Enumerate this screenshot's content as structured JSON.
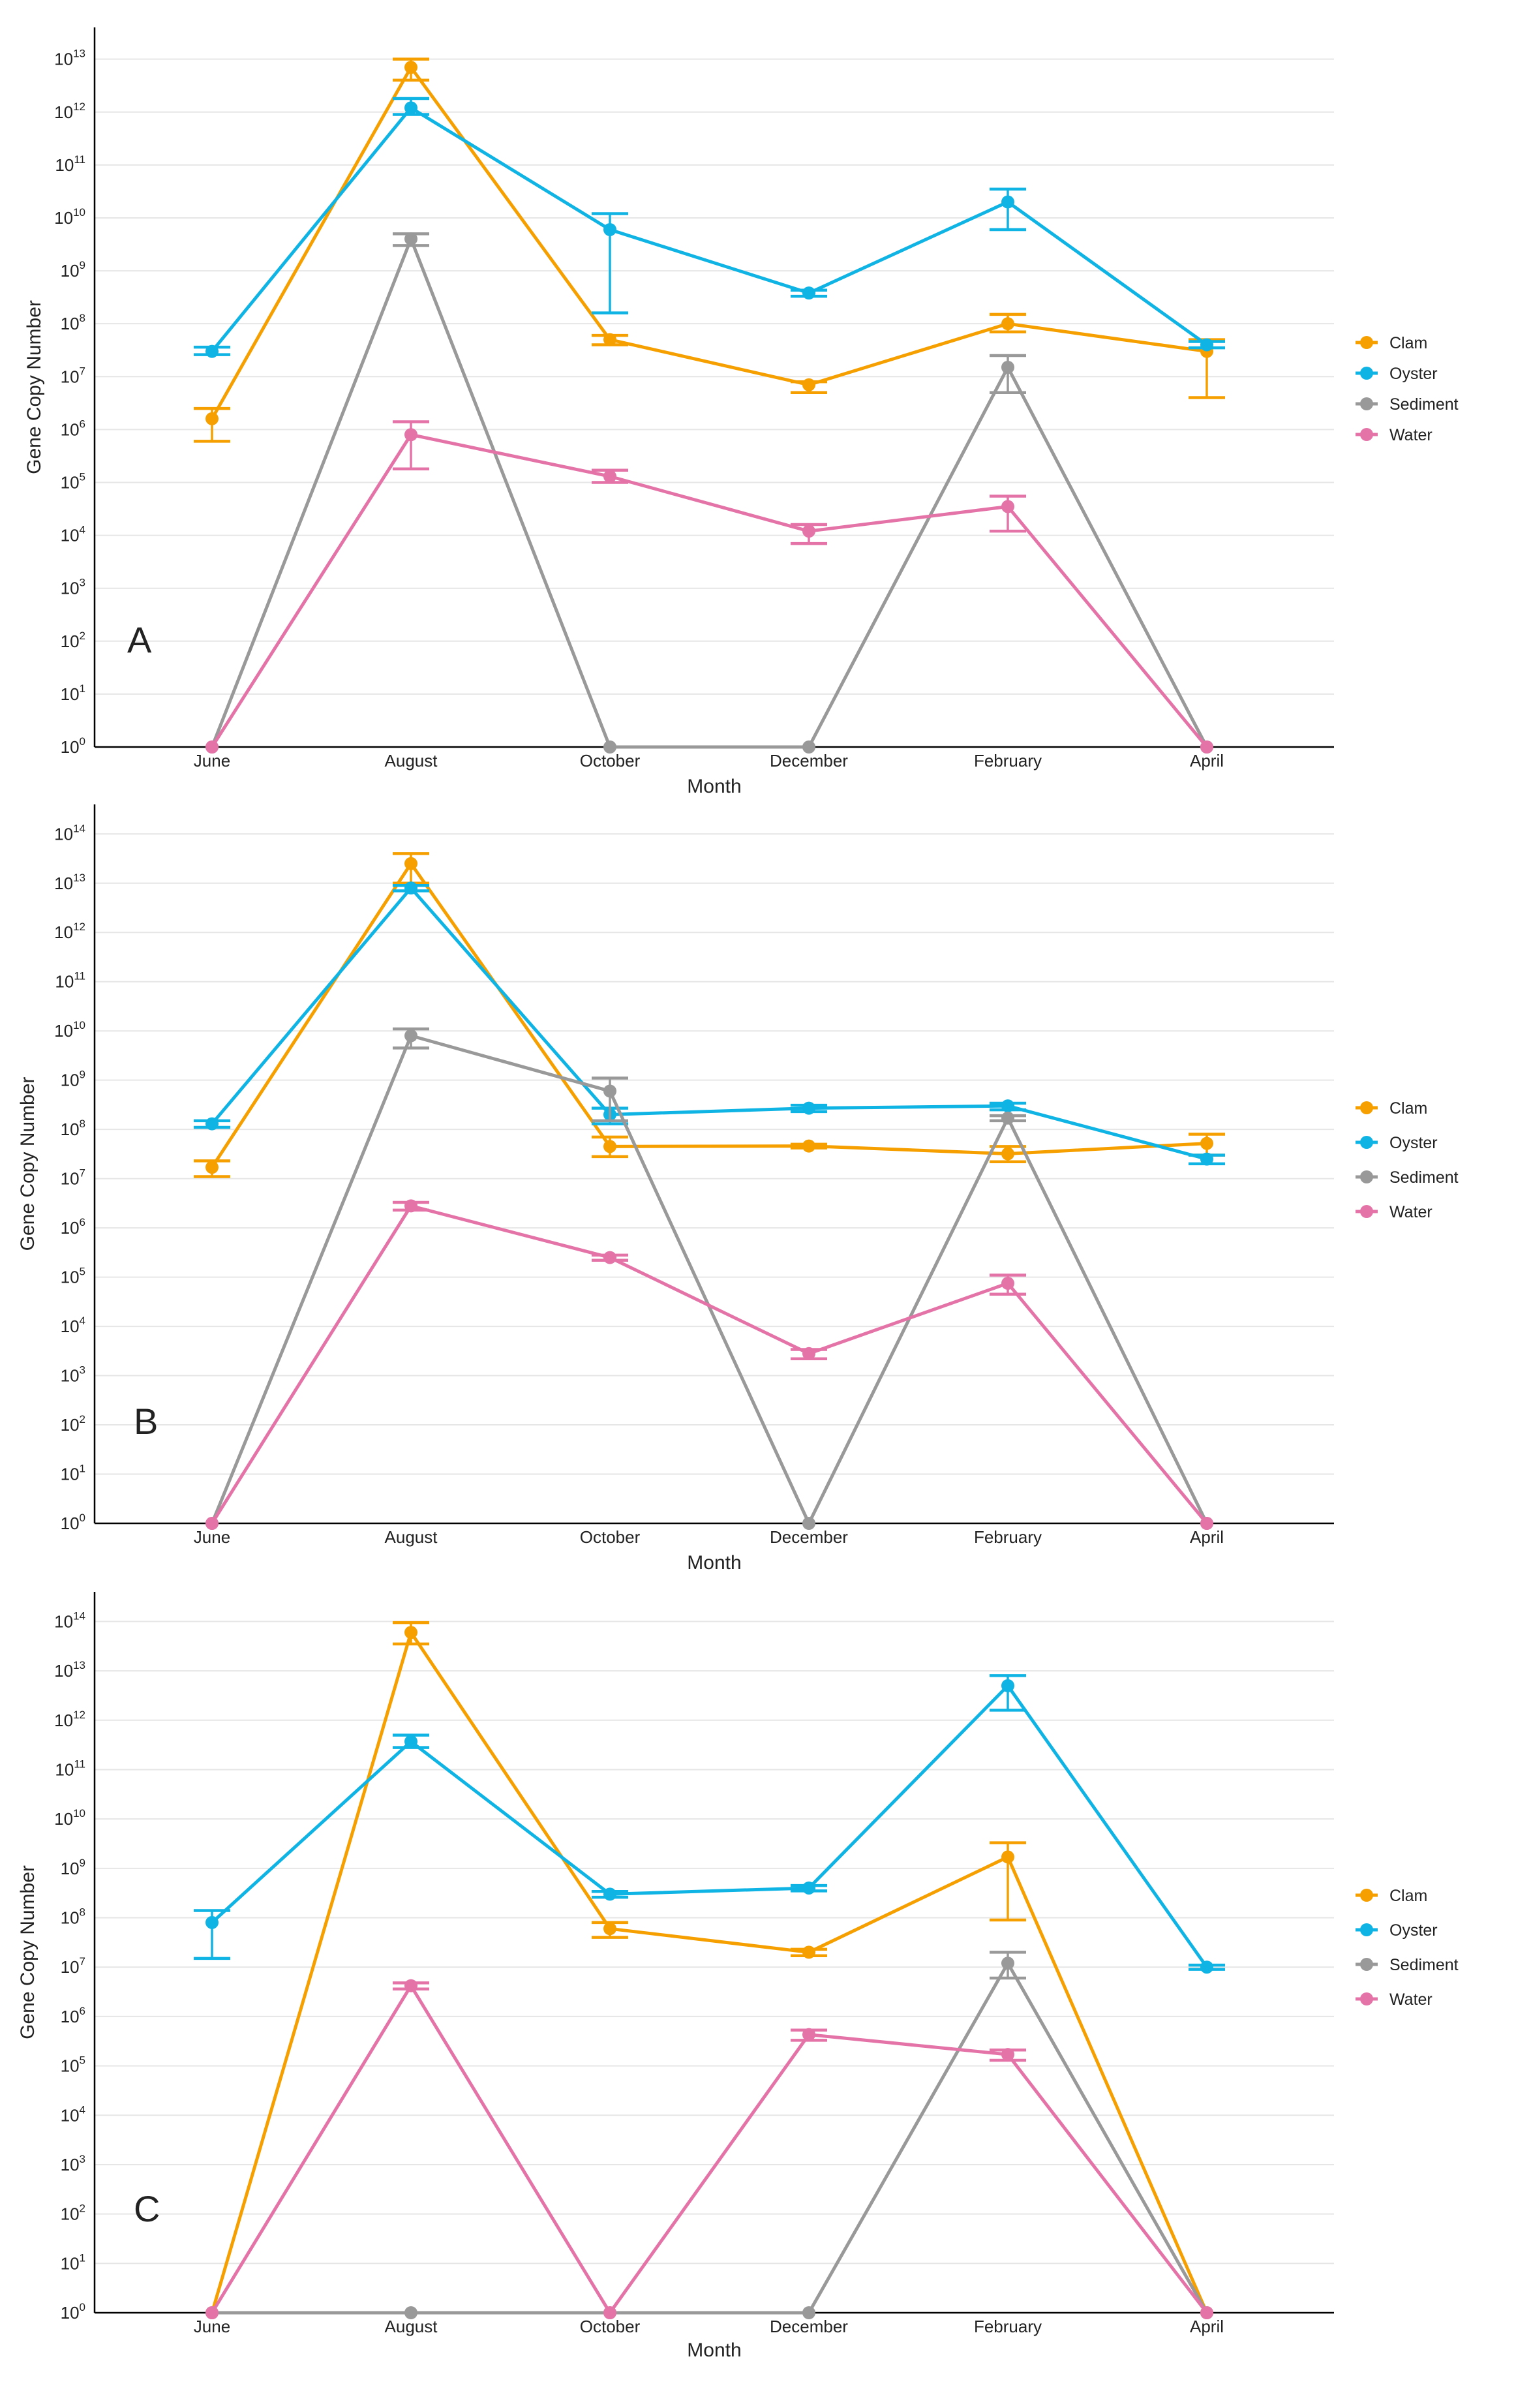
{
  "chart_data": [
    {
      "type": "line",
      "panel_label": "A",
      "xlabel": "Month",
      "ylabel": "Gene Copy Number",
      "y_scale": "log10",
      "y_exponent_range": [
        0,
        13
      ],
      "categories": [
        "June",
        "August",
        "October",
        "December",
        "February",
        "April"
      ],
      "grid": "horizontal major lines",
      "legend_position": "right",
      "error_bars": true,
      "series": [
        {
          "name": "Clam",
          "color": "#f5a000",
          "values": [
            1600000.0,
            7000000000000.0,
            50000000.0,
            7000000.0,
            100000000.0,
            30000000.0
          ],
          "err_low": [
            600000.0,
            4000000000000.0,
            40000000.0,
            5000000.0,
            70000000.0,
            4000000.0
          ],
          "err_high": [
            2500000.0,
            10000000000000.0,
            60000000.0,
            8000000.0,
            150000000.0,
            50000000.0
          ]
        },
        {
          "name": "Oyster",
          "color": "#10b4e4",
          "values": [
            30000000.0,
            1200000000000.0,
            6000000000.0,
            380000000.0,
            20000000000.0,
            40000000.0
          ],
          "err_low": [
            26000000.0,
            900000000000.0,
            160000000.0,
            330000000.0,
            6000000000.0,
            35000000.0
          ],
          "err_high": [
            36000000.0,
            1800000000000.0,
            12000000000.0,
            430000000.0,
            35000000000.0,
            46000000.0
          ]
        },
        {
          "name": "Sediment",
          "color": "#999999",
          "values": [
            1,
            4000000000.0,
            1,
            1,
            15000000.0,
            1
          ],
          "err_low": [
            1,
            3000000000.0,
            1,
            1,
            5000000.0,
            1
          ],
          "err_high": [
            1,
            5000000000.0,
            1,
            1,
            25000000.0,
            1
          ]
        },
        {
          "name": "Water",
          "color": "#e473a8",
          "values": [
            1,
            800000.0,
            130000.0,
            12000.0,
            35000.0,
            1
          ],
          "err_low": [
            1,
            180000.0,
            100000.0,
            7000.0,
            12000.0,
            1
          ],
          "err_high": [
            1,
            1400000.0,
            170000.0,
            16000.0,
            55000.0,
            1
          ]
        }
      ]
    },
    {
      "type": "line",
      "panel_label": "B",
      "xlabel": "Month",
      "ylabel": "Gene Copy Number",
      "y_scale": "log10",
      "y_exponent_range": [
        0,
        14
      ],
      "categories": [
        "June",
        "August",
        "October",
        "December",
        "February",
        "April"
      ],
      "grid": "horizontal major lines",
      "legend_position": "right",
      "error_bars": true,
      "series": [
        {
          "name": "Clam",
          "color": "#f5a000",
          "values": [
            17000000.0,
            25000000000000.0,
            45000000.0,
            46000000.0,
            32000000.0,
            52000000.0
          ],
          "err_low": [
            11000000.0,
            10000000000000.0,
            28000000.0,
            42000000.0,
            22000000.0,
            30000000.0
          ],
          "err_high": [
            23000000.0,
            40000000000000.0,
            70000000.0,
            50000000.0,
            45000000.0,
            80000000.0
          ]
        },
        {
          "name": "Oyster",
          "color": "#10b4e4",
          "values": [
            130000000.0,
            8000000000000.0,
            200000000.0,
            270000000.0,
            300000000.0,
            25000000.0
          ],
          "err_low": [
            110000000.0,
            7000000000000.0,
            130000000.0,
            230000000.0,
            250000000.0,
            20000000.0
          ],
          "err_high": [
            150000000.0,
            9000000000000.0,
            270000000.0,
            310000000.0,
            340000000.0,
            30000000.0
          ]
        },
        {
          "name": "Sediment",
          "color": "#999999",
          "values": [
            1,
            8000000000.0,
            600000000.0,
            1,
            170000000.0,
            1
          ],
          "err_low": [
            1,
            4500000000.0,
            150000000.0,
            1,
            150000000.0,
            1
          ],
          "err_high": [
            1,
            11000000000.0,
            1100000000.0,
            1,
            190000000.0,
            1
          ]
        },
        {
          "name": "Water",
          "color": "#e473a8",
          "values": [
            1,
            2800000.0,
            250000.0,
            2800.0,
            75000.0,
            1
          ],
          "err_low": [
            1,
            2300000.0,
            220000.0,
            2200.0,
            45000.0,
            1
          ],
          "err_high": [
            1,
            3300000.0,
            280000.0,
            3400.0,
            110000.0,
            1
          ]
        }
      ]
    },
    {
      "type": "line",
      "panel_label": "C",
      "xlabel": "Month",
      "ylabel": "Gene Copy Number",
      "y_scale": "log10",
      "y_exponent_range": [
        0,
        14
      ],
      "categories": [
        "June",
        "August",
        "October",
        "December",
        "February",
        "April"
      ],
      "grid": "horizontal major lines",
      "legend_position": "right",
      "error_bars": true,
      "series": [
        {
          "name": "Clam",
          "color": "#f5a000",
          "values": [
            1,
            60000000000000.0,
            60000000.0,
            20000000.0,
            1700000000.0,
            1
          ],
          "err_low": [
            1,
            35000000000000.0,
            40000000.0,
            17000000.0,
            90000000.0,
            1
          ],
          "err_high": [
            1,
            95000000000000.0,
            80000000.0,
            23000000.0,
            3300000000.0,
            1
          ]
        },
        {
          "name": "Oyster",
          "color": "#10b4e4",
          "values": [
            80000000.0,
            370000000000.0,
            300000000.0,
            400000000.0,
            5000000000000.0,
            10000000.0
          ],
          "err_low": [
            15000000.0,
            280000000000.0,
            260000000.0,
            350000000.0,
            1600000000000.0,
            9000000.0
          ],
          "err_high": [
            140000000.0,
            500000000000.0,
            340000000.0,
            450000000.0,
            8000000000000.0,
            11000000.0
          ]
        },
        {
          "name": "Sediment",
          "color": "#999999",
          "values": [
            1,
            1,
            1,
            1,
            12000000.0,
            1
          ],
          "err_low": [
            1,
            1,
            1,
            1,
            6000000.0,
            1
          ],
          "err_high": [
            1,
            1,
            1,
            1,
            20000000.0,
            1
          ]
        },
        {
          "name": "Water",
          "color": "#e473a8",
          "values": [
            1,
            4200000.0,
            1,
            430000.0,
            170000.0,
            1
          ],
          "err_low": [
            1,
            3600000.0,
            1,
            330000.0,
            130000.0,
            1
          ],
          "err_high": [
            1,
            4800000.0,
            1,
            530000.0,
            210000.0,
            1
          ]
        }
      ]
    }
  ]
}
